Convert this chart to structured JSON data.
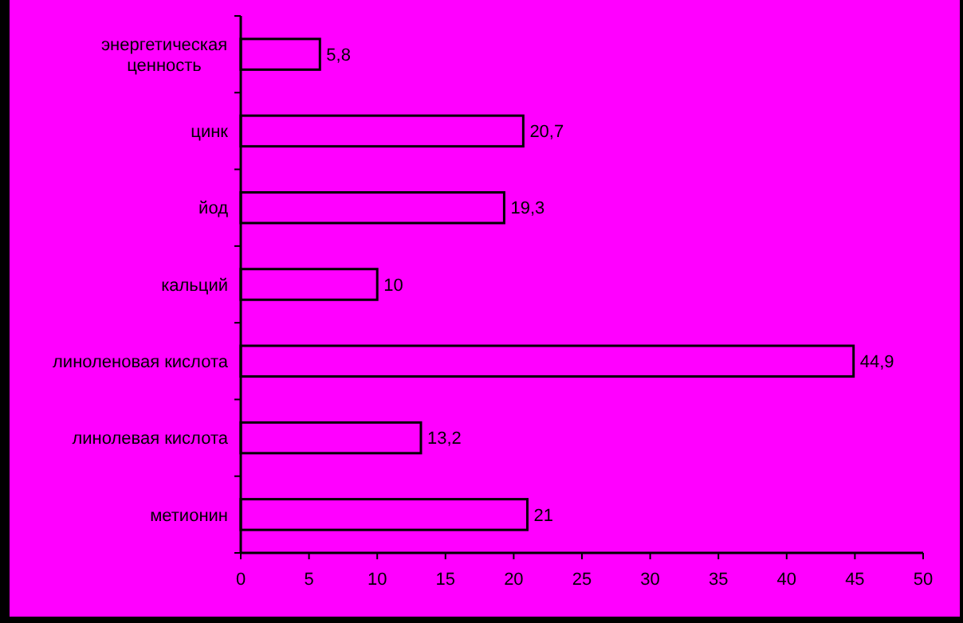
{
  "chart_data": {
    "type": "bar",
    "orientation": "horizontal",
    "categories": [
      "энергетическая ценность",
      "цинк",
      "йод",
      "кальций",
      "линоленовая кислота",
      "линолевая кислота",
      "метионин"
    ],
    "values": [
      5.8,
      20.7,
      19.3,
      10,
      44.9,
      13.2,
      21
    ],
    "value_labels": [
      "5,8",
      "20,7",
      "19,3",
      "10",
      "44,9",
      "13,2",
      "21"
    ],
    "color": "#ff00ff",
    "xlim": [
      0,
      50
    ],
    "xticks": [
      0,
      5,
      10,
      15,
      20,
      25,
      30,
      35,
      40,
      45,
      50
    ],
    "grid": false
  }
}
